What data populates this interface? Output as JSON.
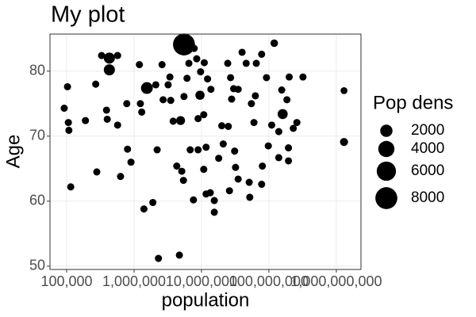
{
  "chart_data": {
    "type": "scatter",
    "title": "My plot",
    "x_label": "population",
    "y_label": "Age",
    "legend_title": "Pop dens",
    "legend_sizes": [
      2000,
      4000,
      6000,
      8000
    ],
    "color": "#000000",
    "log_x": true,
    "grid": true,
    "legend_position": "right",
    "xlim": [
      56600,
      2320000000
    ],
    "ylim": [
      49.5,
      85.7
    ],
    "xticks": [
      {
        "value": 100000,
        "label": "100,000"
      },
      {
        "value": 1000000,
        "label": "1,000,000"
      },
      {
        "value": 10000000,
        "label": "10,000,000"
      },
      {
        "value": 100000000,
        "label": "100,000,000"
      },
      {
        "value": 1000000000,
        "label": "1,000,000,000"
      }
    ],
    "yticks": [
      50,
      60,
      70,
      80
    ],
    "x": [
      5500000,
      120000000,
      430000,
      430000,
      1550000,
      160000000,
      9500000,
      4900000,
      1300000000,
      1300000000,
      92000,
      103000,
      106000,
      108000,
      115000,
      190000,
      270000,
      330000,
      570000,
      390000,
      400000,
      280000,
      570000,
      630000,
      780000,
      1240000,
      1300000,
      800000,
      900000,
      1200000,
      1400000,
      1900000,
      2300000,
      4700000,
      2200000,
      2100000,
      2600000,
      2700000,
      3500000,
      3200000,
      3800000,
      4300000,
      5100000,
      5400000,
      5500000,
      6100000,
      6500000,
      7800000,
      8500000,
      9700000,
      11000000,
      12300000,
      13800000,
      8900000,
      10800000,
      11700000,
      10800000,
      11700000,
      13500000,
      15500000,
      15500000,
      7600000,
      18000000,
      20000000,
      21000000,
      24500000,
      27000000,
      28000000,
      25000000,
      30000000,
      32000000,
      26000000,
      35000000,
      40000000,
      46000000,
      55000000,
      60000000,
      63000000,
      65000000,
      78000000,
      80000000,
      78000000,
      92000000,
      98000000,
      110000000,
      140000000,
      140000000,
      155000000,
      185000000,
      195000000,
      195000000,
      200000000,
      230000000,
      260000000,
      320000000,
      52000000,
      51000000,
      31000000,
      35000000,
      8900000,
      6800000,
      3400000
    ],
    "y": [
      84.1,
      84.3,
      82,
      80.2,
      77.4,
      73.4,
      76.3,
      72.4,
      77,
      69.1,
      74.3,
      77.6,
      72.1,
      70.9,
      62.2,
      72.4,
      78.0,
      82.4,
      82.4,
      74.0,
      72.6,
      64.5,
      71.7,
      63.8,
      75.0,
      75,
      73.7,
      68.0,
      66.0,
      81.0,
      58.8,
      59.8,
      51.2,
      51.7,
      67.9,
      77.9,
      81,
      75.6,
      75.5,
      77.9,
      72.3,
      65.4,
      64.6,
      63.2,
      76.1,
      78.9,
      81.2,
      83.5,
      81.9,
      79.9,
      81.3,
      78.8,
      77.2,
      72.7,
      73.3,
      68.3,
      64.9,
      61.1,
      61.3,
      60.1,
      58.3,
      60.2,
      66.6,
      71.6,
      68.8,
      81.2,
      79.0,
      75.7,
      71.5,
      77.3,
      65.2,
      61.6,
      63.4,
      82.9,
      81.2,
      75.0,
      72.1,
      76.2,
      81.2,
      62.6,
      65.4,
      82.6,
      79.0,
      68.5,
      71.7,
      66.7,
      70.7,
      77.1,
      75.6,
      68.2,
      66.2,
      79.1,
      71.2,
      72.1,
      79.1,
      60.6,
      62.9,
      67.7,
      77.2,
      67.9,
      67.9,
      79.1
    ],
    "sizes": [
      8000,
      300,
      1500,
      1500,
      1800,
      1100,
      800,
      700,
      150,
      450,
      200,
      200,
      200,
      200,
      200,
      200,
      200,
      200,
      200,
      200,
      200,
      200,
      200,
      200,
      200,
      200,
      200,
      200,
      200,
      200,
      200,
      200,
      200,
      200,
      200,
      200,
      200,
      200,
      200,
      200,
      200,
      200,
      200,
      200,
      200,
      200,
      200,
      200,
      200,
      200,
      200,
      200,
      200,
      200,
      200,
      200,
      200,
      200,
      200,
      200,
      200,
      200,
      200,
      200,
      200,
      200,
      200,
      200,
      200,
      200,
      200,
      200,
      200,
      200,
      200,
      200,
      200,
      200,
      200,
      200,
      200,
      200,
      200,
      200,
      200,
      200,
      200,
      200,
      200,
      200,
      200,
      200,
      200,
      200,
      200,
      200,
      200,
      200,
      200,
      200,
      200,
      200
    ]
  }
}
